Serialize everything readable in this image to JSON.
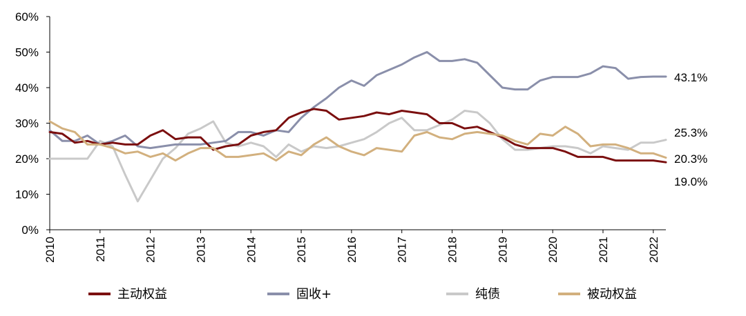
{
  "chart_data": {
    "type": "line",
    "title": "",
    "xlabel": "",
    "ylabel": "",
    "ylim": [
      0,
      60
    ],
    "y_ticks": [
      "0%",
      "10%",
      "20%",
      "30%",
      "40%",
      "50%",
      "60%"
    ],
    "x_ticks": [
      "2010",
      "2011",
      "2012",
      "2013",
      "2014",
      "2015",
      "2016",
      "2017",
      "2018",
      "2019",
      "2020",
      "2021",
      "2022"
    ],
    "x": [
      2010.0,
      2010.25,
      2010.5,
      2010.75,
      2011.0,
      2011.25,
      2011.5,
      2011.75,
      2012.0,
      2012.25,
      2012.5,
      2012.75,
      2013.0,
      2013.25,
      2013.5,
      2013.75,
      2014.0,
      2014.25,
      2014.5,
      2014.75,
      2015.0,
      2015.25,
      2015.5,
      2015.75,
      2016.0,
      2016.25,
      2016.5,
      2016.75,
      2017.0,
      2017.25,
      2017.5,
      2017.75,
      2018.0,
      2018.25,
      2018.5,
      2018.75,
      2019.0,
      2019.25,
      2019.5,
      2019.75,
      2020.0,
      2020.25,
      2020.5,
      2020.75,
      2021.0,
      2021.25,
      2021.5,
      2021.75,
      2022.0,
      2022.25
    ],
    "series": [
      {
        "name": "主动权益",
        "color": "#7B0F0F",
        "values": [
          27.5,
          27.0,
          24.5,
          25.0,
          24.0,
          24.5,
          24.0,
          24.0,
          26.5,
          28.0,
          25.5,
          26.0,
          26.0,
          22.5,
          23.5,
          24.0,
          26.5,
          27.5,
          28.0,
          31.5,
          33.0,
          34.0,
          33.5,
          31.0,
          31.5,
          32.0,
          33.0,
          32.5,
          33.5,
          33.0,
          32.5,
          30.0,
          30.0,
          28.5,
          29.0,
          27.5,
          26.0,
          24.0,
          23.0,
          23.0,
          23.0,
          22.0,
          20.5,
          20.5,
          20.5,
          19.5,
          19.5,
          19.5,
          19.5,
          19.0
        ]
      },
      {
        "name": "固收+",
        "color": "#8A8FAA",
        "values": [
          28.0,
          25.0,
          25.0,
          26.5,
          24.0,
          25.0,
          26.5,
          23.5,
          23.0,
          23.5,
          24.0,
          24.0,
          24.0,
          24.5,
          25.0,
          27.5,
          27.5,
          26.5,
          28.0,
          27.5,
          31.5,
          34.5,
          37.0,
          40.0,
          42.0,
          40.5,
          43.5,
          45.0,
          46.5,
          48.5,
          50.0,
          47.5,
          47.5,
          48.0,
          47.0,
          43.5,
          40.0,
          39.5,
          39.5,
          42.0,
          43.0,
          43.0,
          43.0,
          44.0,
          46.0,
          45.5,
          42.5,
          43.0,
          43.1,
          43.1
        ]
      },
      {
        "name": "纯债",
        "color": "#C9C9C9",
        "values": [
          20.0,
          20.0,
          20.0,
          20.0,
          25.0,
          23.5,
          15.5,
          8.0,
          14.0,
          20.0,
          23.0,
          27.0,
          28.5,
          30.5,
          24.5,
          23.5,
          24.5,
          23.5,
          20.5,
          24.0,
          22.0,
          23.5,
          23.0,
          23.5,
          24.5,
          25.5,
          27.5,
          30.0,
          31.5,
          28.0,
          28.0,
          29.5,
          31.0,
          33.5,
          33.0,
          30.0,
          25.5,
          22.5,
          22.5,
          23.0,
          23.5,
          23.5,
          23.0,
          21.5,
          23.5,
          23.0,
          22.5,
          24.5,
          24.5,
          25.3
        ]
      },
      {
        "name": "被动权益",
        "color": "#D2B07E",
        "values": [
          30.5,
          28.5,
          27.5,
          24.0,
          24.0,
          23.0,
          21.5,
          22.0,
          20.5,
          21.5,
          19.5,
          21.5,
          23.0,
          23.0,
          20.5,
          20.5,
          21.0,
          21.5,
          19.5,
          22.0,
          21.0,
          24.0,
          26.0,
          23.5,
          22.0,
          21.0,
          23.0,
          22.5,
          22.0,
          26.5,
          27.5,
          26.0,
          25.5,
          27.0,
          27.5,
          27.0,
          26.5,
          25.0,
          24.0,
          27.0,
          26.5,
          29.0,
          27.0,
          23.5,
          24.0,
          24.0,
          23.0,
          21.5,
          21.5,
          20.3
        ]
      }
    ],
    "end_labels": [
      "43.1%",
      "25.3%",
      "20.3%",
      "19.0%"
    ],
    "legend": {
      "position": "bottom",
      "entries": [
        "主动权益",
        "固收+",
        "纯债",
        "被动权益"
      ]
    },
    "grid": false
  }
}
